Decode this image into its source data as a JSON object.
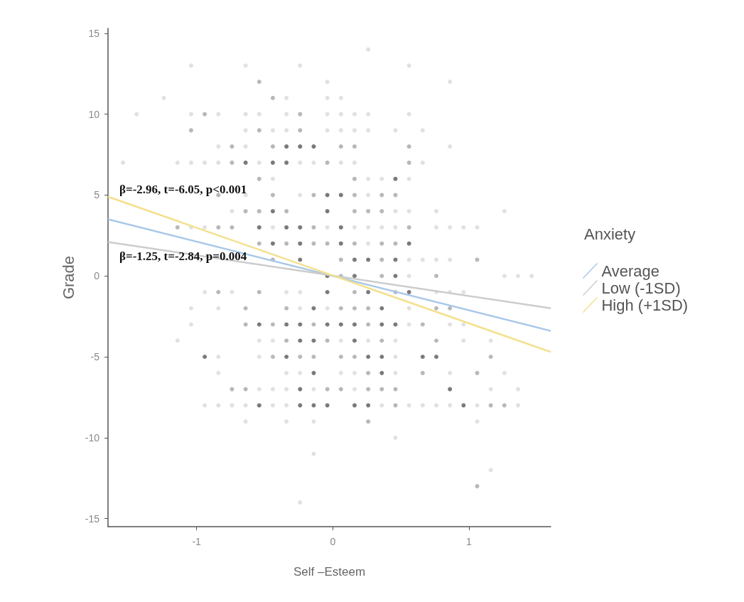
{
  "chart_data": {
    "type": "scatter",
    "xlabel": "Self –Esteem",
    "ylabel": "Grade",
    "legend_title": "Anxiety",
    "legend": "right",
    "xlim": [
      -1.65,
      1.6
    ],
    "ylim": [
      -15.5,
      15.3
    ],
    "xticks": [
      -1,
      0,
      1
    ],
    "yticks": [
      -15,
      -10,
      -5,
      0,
      5,
      10,
      15
    ],
    "grid": false,
    "annotations": [
      "β=-2.96, t=-6.05, p<0.001",
      "β=-1.25, t=-2.84, p=0.004"
    ],
    "series": [
      {
        "marker": "circle",
        "color": "#d9d9d9",
        "x": [
          0.26,
          -1.04,
          -0.64,
          -0.24,
          0.56,
          -0.04,
          0.86,
          -1.24,
          -0.34,
          -0.04,
          0.06,
          -1.44,
          -1.04,
          -0.84,
          -0.64,
          -0.54,
          -0.34,
          -0.04,
          0.06,
          0.16,
          0.26,
          0.56,
          -0.64,
          -0.44,
          -0.34,
          -0.04,
          0.06,
          0.16,
          0.26,
          0.46,
          0.66,
          -0.84,
          -0.64,
          0.86,
          -1.54,
          -1.14,
          -1.04,
          -0.94,
          -0.84,
          -0.54,
          -0.24,
          -0.14,
          0.06,
          0.16,
          0.66,
          -0.44,
          0.26,
          0.36,
          0.56,
          -0.64,
          -0.24,
          0.26,
          -0.74,
          0.46,
          0.56,
          0.76,
          1.26,
          -1.04,
          -0.94,
          -0.44,
          -0.04,
          0.16,
          0.26,
          0.36,
          0.46,
          0.76,
          0.86,
          0.96,
          1.06,
          0.26,
          0.56,
          0.66,
          0.76,
          0.86,
          0.56,
          1.26,
          1.36,
          1.46,
          -0.94,
          -0.74,
          -0.34,
          -0.24,
          0.76,
          0.86,
          0.96,
          -1.04,
          -0.84,
          -0.24,
          -0.04,
          0.56,
          -1.04,
          0.56,
          0.86,
          0.96,
          -1.14,
          -0.54,
          -0.44,
          0.06,
          0.26,
          0.46,
          0.96,
          1.16,
          -0.84,
          -0.54,
          0.46,
          -0.84,
          -0.34,
          -0.24,
          0.06,
          0.16,
          0.46,
          0.86,
          1.26,
          -0.54,
          -0.44,
          -0.34,
          -0.14,
          0.16,
          1.16,
          1.36,
          -0.94,
          -0.84,
          -0.74,
          -0.64,
          -0.44,
          -0.34,
          0.36,
          0.56,
          0.66,
          0.76,
          0.86,
          1.06,
          1.36,
          -0.64,
          -0.34,
          -0.14,
          1.06,
          0.46,
          -0.14,
          1.16,
          -0.24
        ],
        "values": [
          14,
          13,
          13,
          13,
          13,
          12,
          12,
          11,
          11,
          11,
          11,
          10,
          10,
          10,
          10,
          10,
          10,
          10,
          10,
          10,
          10,
          10,
          9,
          9,
          9,
          9,
          9,
          9,
          9,
          9,
          9,
          8,
          8,
          8,
          7,
          7,
          7,
          7,
          7,
          7,
          7,
          7,
          7,
          7,
          7,
          6,
          6,
          6,
          6,
          5,
          5,
          5,
          4,
          4,
          4,
          4,
          4,
          3,
          3,
          3,
          3,
          3,
          3,
          3,
          3,
          3,
          3,
          3,
          3,
          2,
          1,
          1,
          1,
          1,
          0,
          0,
          0,
          0,
          -1,
          -1,
          -1,
          -1,
          -1,
          -1,
          -1,
          -2,
          -2,
          -2,
          -2,
          -2,
          -3,
          -3,
          -3,
          -3,
          -4,
          -4,
          -4,
          -4,
          -4,
          -4,
          -4,
          -4,
          -5,
          -5,
          -5,
          -6,
          -6,
          -6,
          -6,
          -6,
          -6,
          -6,
          -6,
          -7,
          -7,
          -7,
          -7,
          -7,
          -7,
          -7,
          -8,
          -8,
          -8,
          -8,
          -8,
          -8,
          -8,
          -8,
          -8,
          -8,
          -8,
          -8,
          -8,
          -9,
          -9,
          -9,
          -9,
          -10,
          -11,
          -12,
          -14
        ]
      },
      {
        "marker": "circle",
        "color": "#a6a6a6",
        "x": [
          -0.54,
          -0.44,
          -0.94,
          -0.24,
          -1.04,
          -0.54,
          -0.24,
          -0.74,
          -0.44,
          0.06,
          0.16,
          0.56,
          -0.74,
          -0.04,
          0.56,
          -0.54,
          0.16,
          -0.84,
          -0.44,
          -0.14,
          0.16,
          0.36,
          0.46,
          -0.64,
          -0.54,
          -0.34,
          0.16,
          0.26,
          0.36,
          -1.14,
          -0.84,
          -0.74,
          -0.14,
          0.56,
          -0.54,
          -0.34,
          -0.14,
          -0.04,
          0.16,
          0.36,
          0.46,
          -0.44,
          0.06,
          0.36,
          1.06,
          0.06,
          0.36,
          0.76,
          -0.84,
          -0.54,
          0.16,
          0.46,
          -0.64,
          -0.34,
          0.06,
          0.16,
          0.26,
          0.76,
          0.86,
          -0.64,
          -0.44,
          -0.14,
          0.26,
          0.66,
          -0.34,
          -0.04,
          0.36,
          0.76,
          -0.44,
          -0.24,
          -0.14,
          0.06,
          0.16,
          1.16,
          0.26,
          0.66,
          1.06,
          -0.74,
          -0.64,
          -0.04,
          0.06,
          0.26,
          0.36,
          0.46,
          0.46,
          1.16,
          1.26,
          0.26,
          1.06
        ],
        "values": [
          12,
          11,
          10,
          10,
          9,
          9,
          9,
          8,
          8,
          8,
          8,
          8,
          7,
          7,
          7,
          6,
          6,
          5,
          5,
          5,
          5,
          5,
          5,
          4,
          4,
          4,
          4,
          4,
          4,
          3,
          3,
          3,
          3,
          3,
          2,
          2,
          2,
          2,
          2,
          2,
          2,
          1,
          1,
          1,
          1,
          0,
          0,
          0,
          -1,
          -1,
          -1,
          -1,
          -2,
          -2,
          -2,
          -2,
          -2,
          -2,
          -2,
          -3,
          -3,
          -3,
          -3,
          -3,
          -4,
          -4,
          -4,
          -4,
          -5,
          -5,
          -5,
          -5,
          -5,
          -5,
          -6,
          -6,
          -6,
          -7,
          -7,
          -7,
          -7,
          -7,
          -7,
          -7,
          -8,
          -8,
          -8,
          -9,
          -13
        ]
      },
      {
        "marker": "circle",
        "color": "#595959",
        "x": [
          -0.34,
          -0.24,
          -0.14,
          -0.64,
          -0.44,
          -0.34,
          0.46,
          -0.04,
          0.06,
          -0.44,
          -0.04,
          -0.54,
          -0.34,
          -0.24,
          0.06,
          -0.44,
          -0.24,
          0.06,
          0.56,
          -0.24,
          0.16,
          0.26,
          0.46,
          -0.04,
          0.16,
          0.46,
          -0.04,
          0.26,
          0.56,
          -0.14,
          0.36,
          -0.54,
          -0.34,
          -0.24,
          -0.04,
          0.06,
          0.16,
          0.36,
          0.46,
          -0.24,
          -0.14,
          0.16,
          -0.94,
          -0.34,
          0.26,
          0.36,
          0.66,
          0.76,
          -0.14,
          0.36,
          -0.24,
          0.86,
          -0.54,
          -0.24,
          -0.14,
          -0.04,
          0.16,
          0.26,
          0.96
        ],
        "values": [
          8,
          8,
          8,
          7,
          7,
          7,
          6,
          5,
          5,
          4,
          4,
          3,
          3,
          3,
          3,
          2,
          2,
          2,
          2,
          1,
          1,
          1,
          1,
          0,
          0,
          0,
          -1,
          -1,
          -1,
          -2,
          -2,
          -3,
          -3,
          -3,
          -3,
          -3,
          -3,
          -3,
          -3,
          -4,
          -4,
          -4,
          -5,
          -5,
          -5,
          -5,
          -5,
          -5,
          -6,
          -6,
          -7,
          -7,
          -8,
          -8,
          -8,
          -8,
          -8,
          -8,
          -8
        ]
      },
      {
        "type": "line",
        "name": "Average",
        "color": "#a9c8e8",
        "marker": "none",
        "x": [
          -1.65,
          1.6
        ],
        "values": [
          3.5,
          -3.4
        ]
      },
      {
        "type": "line",
        "name": "Low (-1SD)",
        "color": "#cccccc",
        "marker": "none",
        "x": [
          -1.65,
          1.6
        ],
        "values": [
          2.1,
          -2.0
        ]
      },
      {
        "type": "line",
        "name": "High (+1SD)",
        "color": "#f3e08c",
        "marker": "none",
        "x": [
          -1.65,
          1.6
        ],
        "values": [
          4.9,
          -4.7
        ]
      }
    ]
  }
}
